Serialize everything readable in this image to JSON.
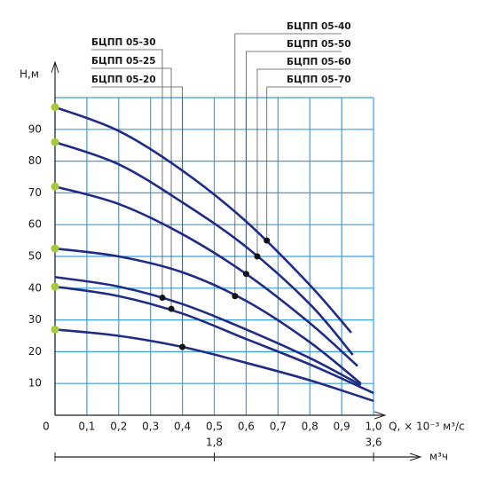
{
  "chart_data": {
    "type": "line",
    "y_label": "Н,м",
    "x_label": "Q, × 10⁻³ м³/с",
    "x2_label": "м³ч",
    "xlim": [
      0,
      1.0
    ],
    "ylim": [
      0,
      100
    ],
    "x2lim": [
      0,
      3.6
    ],
    "xticks": [
      0,
      {
        "value": 0.1,
        "label": "0,1"
      },
      {
        "value": 0.2,
        "label": "0,2"
      },
      {
        "value": 0.3,
        "label": "0,3"
      },
      {
        "value": 0.4,
        "label": "0,4"
      },
      {
        "value": 0.5,
        "label": "0,5"
      },
      {
        "value": 0.6,
        "label": "0,6"
      },
      {
        "value": 0.7,
        "label": "0,7"
      },
      {
        "value": 0.8,
        "label": "0,8"
      },
      {
        "value": 0.9,
        "label": "0,9"
      },
      {
        "value": 1.0,
        "label": "1,0"
      }
    ],
    "yticks": [
      10,
      20,
      30,
      40,
      50,
      60,
      70,
      80,
      90
    ],
    "x2ticks": [
      {
        "value": 1.8,
        "label": "1,8"
      },
      {
        "value": 3.6,
        "label": "3,6"
      }
    ],
    "grid": true,
    "grid_color": "#3a9fdc",
    "start_dot_color": "#a6c93a",
    "duty_dot_color": "#111111",
    "series": [
      {
        "name": "БЦПП 05-20",
        "color": "#1f2d86",
        "label_group": "left",
        "start_dot": true,
        "x": [
          0,
          0.2,
          0.4,
          0.6,
          0.8,
          1.0
        ],
        "values": [
          27,
          25,
          21.5,
          16.5,
          11,
          4.5
        ],
        "duty_point": {
          "x": 0.4,
          "y": 21.5
        }
      },
      {
        "name": "БЦПП 05-25",
        "color": "#1f2d86",
        "label_group": "left",
        "start_dot": true,
        "x": [
          0,
          0.2,
          0.4,
          0.6,
          0.8,
          1.0
        ],
        "values": [
          40.5,
          37.5,
          32,
          24,
          16,
          7
        ],
        "duty_point": {
          "x": 0.365,
          "y": 33.5
        }
      },
      {
        "name": "БЦПП 05-30",
        "color": "#1f2d86",
        "label_group": "left",
        "start_dot": false,
        "x": [
          0,
          0.2,
          0.4,
          0.6,
          0.8,
          0.96
        ],
        "values": [
          43.5,
          40.5,
          35,
          27,
          18,
          9.5
        ],
        "duty_point": {
          "x": 0.337,
          "y": 37
        }
      },
      {
        "name": "БЦПП 05-40",
        "color": "#1f2d86",
        "label_group": "right",
        "start_dot": true,
        "x": [
          0,
          0.2,
          0.4,
          0.6,
          0.8,
          0.96
        ],
        "values": [
          52.5,
          50,
          45,
          36,
          23,
          10
        ],
        "duty_point": {
          "x": 0.565,
          "y": 37.5
        }
      },
      {
        "name": "БЦПП 05-50",
        "color": "#1f2d86",
        "label_group": "right",
        "start_dot": true,
        "x": [
          0,
          0.2,
          0.4,
          0.6,
          0.8,
          0.95
        ],
        "values": [
          72,
          66.5,
          57,
          44.5,
          29,
          15.5
        ],
        "duty_point": {
          "x": 0.6,
          "y": 44.5
        }
      },
      {
        "name": "БЦПП 05-60",
        "color": "#1f2d86",
        "label_group": "right",
        "start_dot": true,
        "x": [
          0,
          0.2,
          0.4,
          0.6,
          0.8,
          0.935
        ],
        "values": [
          86,
          79,
          67,
          53,
          35,
          19
        ],
        "duty_point": {
          "x": 0.635,
          "y": 50
        }
      },
      {
        "name": "БЦПП 05-70",
        "color": "#1f2d86",
        "label_group": "right",
        "start_dot": true,
        "x": [
          0,
          0.2,
          0.4,
          0.6,
          0.8,
          0.93
        ],
        "values": [
          97,
          89.5,
          77,
          61,
          41,
          26
        ],
        "duty_point": {
          "x": 0.665,
          "y": 55
        }
      }
    ]
  }
}
